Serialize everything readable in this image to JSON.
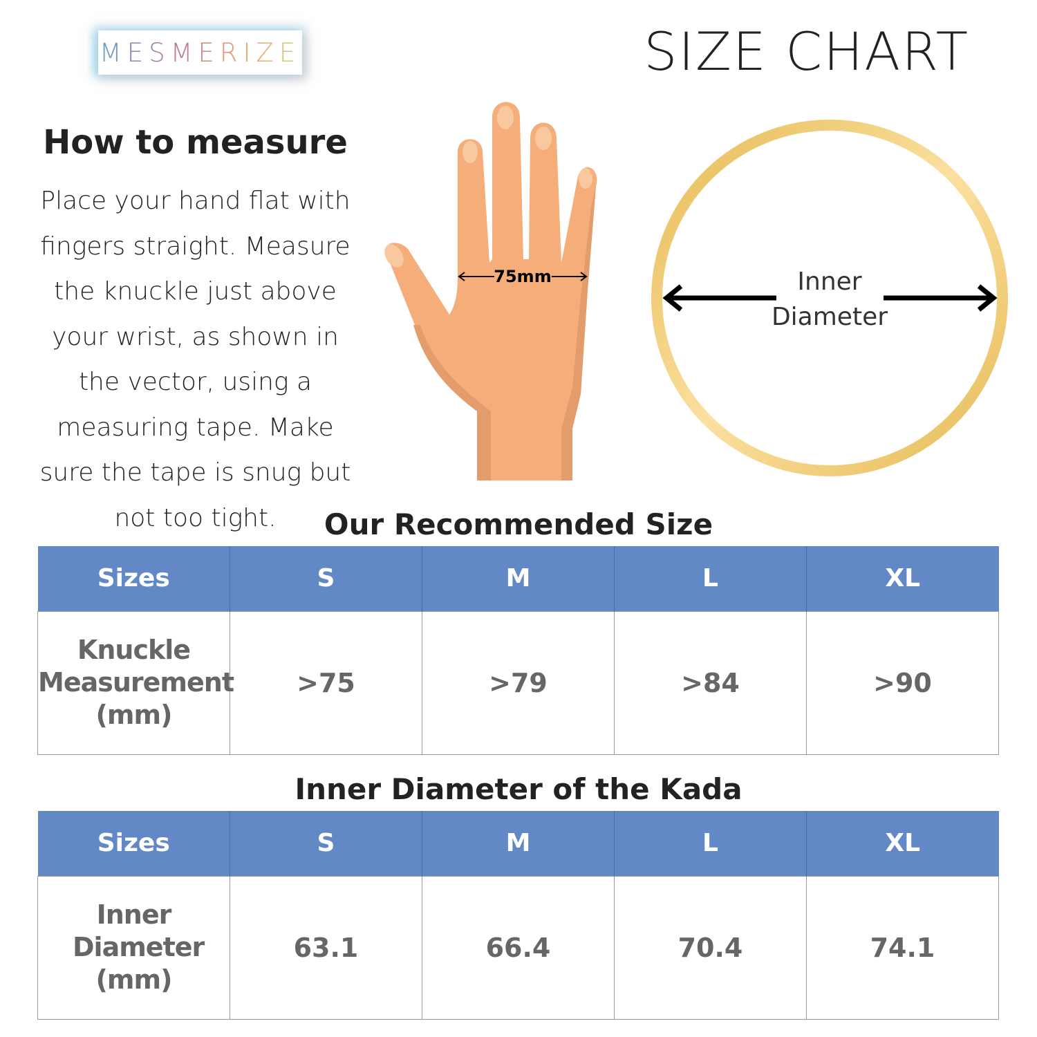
{
  "brand": "MESMERIZE",
  "title": "SIZE CHART",
  "how_to": {
    "heading": "How to measure",
    "text": "Place your hand flat with fingers straight. Measure the knuckle just above your wrist, as shown in the vector, using a measuring tape. Make sure the tape is snug but not too tight."
  },
  "hand_label": "75mm",
  "bangle_label": {
    "line1": "Inner",
    "line2": "Diameter"
  },
  "colors": {
    "header": "#6289c5",
    "gold": "#e8c060",
    "skin": "#f5ad7a"
  },
  "table1": {
    "title": "Our Recommended Size",
    "headers": [
      "Sizes",
      "S",
      "M",
      "L",
      "XL"
    ],
    "row_label": "Knuckle Measurement (mm)",
    "values": [
      ">75",
      ">79",
      ">84",
      ">90"
    ]
  },
  "table2": {
    "title": "Inner Diameter of the Kada",
    "headers": [
      "Sizes",
      "S",
      "M",
      "L",
      "XL"
    ],
    "row_label": "Inner Diameter (mm)",
    "values": [
      "63.1",
      "66.4",
      "70.4",
      "74.1"
    ]
  }
}
